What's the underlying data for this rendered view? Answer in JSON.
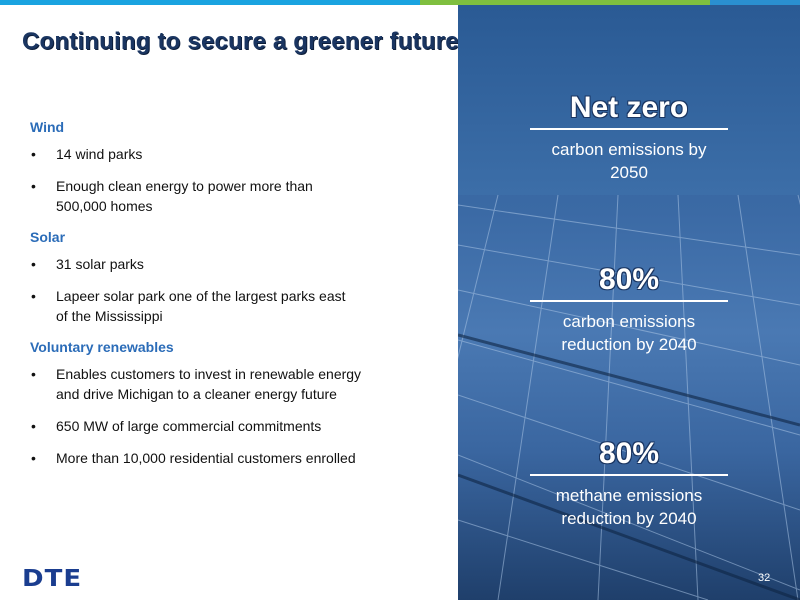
{
  "title": "Continuing to secure a greener future",
  "sections": [
    {
      "heading": "Wind",
      "items": [
        "14 wind parks",
        "Enough clean energy to power more than 500,000 homes"
      ]
    },
    {
      "heading": "Solar",
      "items": [
        "31 solar parks",
        "Lapeer solar park one of the largest parks east of the Mississippi"
      ]
    },
    {
      "heading": "Voluntary renewables",
      "items": [
        "Enables customers to invest in renewable energy and drive Michigan to a cleaner energy future",
        "650 MW of large commercial commitments",
        "More than 10,000 residential customers enrolled"
      ]
    }
  ],
  "stats": [
    {
      "value": "Net zero",
      "desc_line1": "carbon emissions by",
      "desc_line2": "2050"
    },
    {
      "value": "80%",
      "desc_line1": "carbon emissions",
      "desc_line2": "reduction by 2040"
    },
    {
      "value": "80%",
      "desc_line1": "methane emissions",
      "desc_line2": "reduction by 2040"
    }
  ],
  "logo": "DTE",
  "page_number": "32",
  "colors": {
    "title": "#1a3561",
    "section_heading": "#2b6cb8",
    "logo": "#1a3d8f",
    "panel": "#3b6aa5",
    "bar_blue": "#1aa3e0",
    "bar_green": "#7fbf3f"
  }
}
